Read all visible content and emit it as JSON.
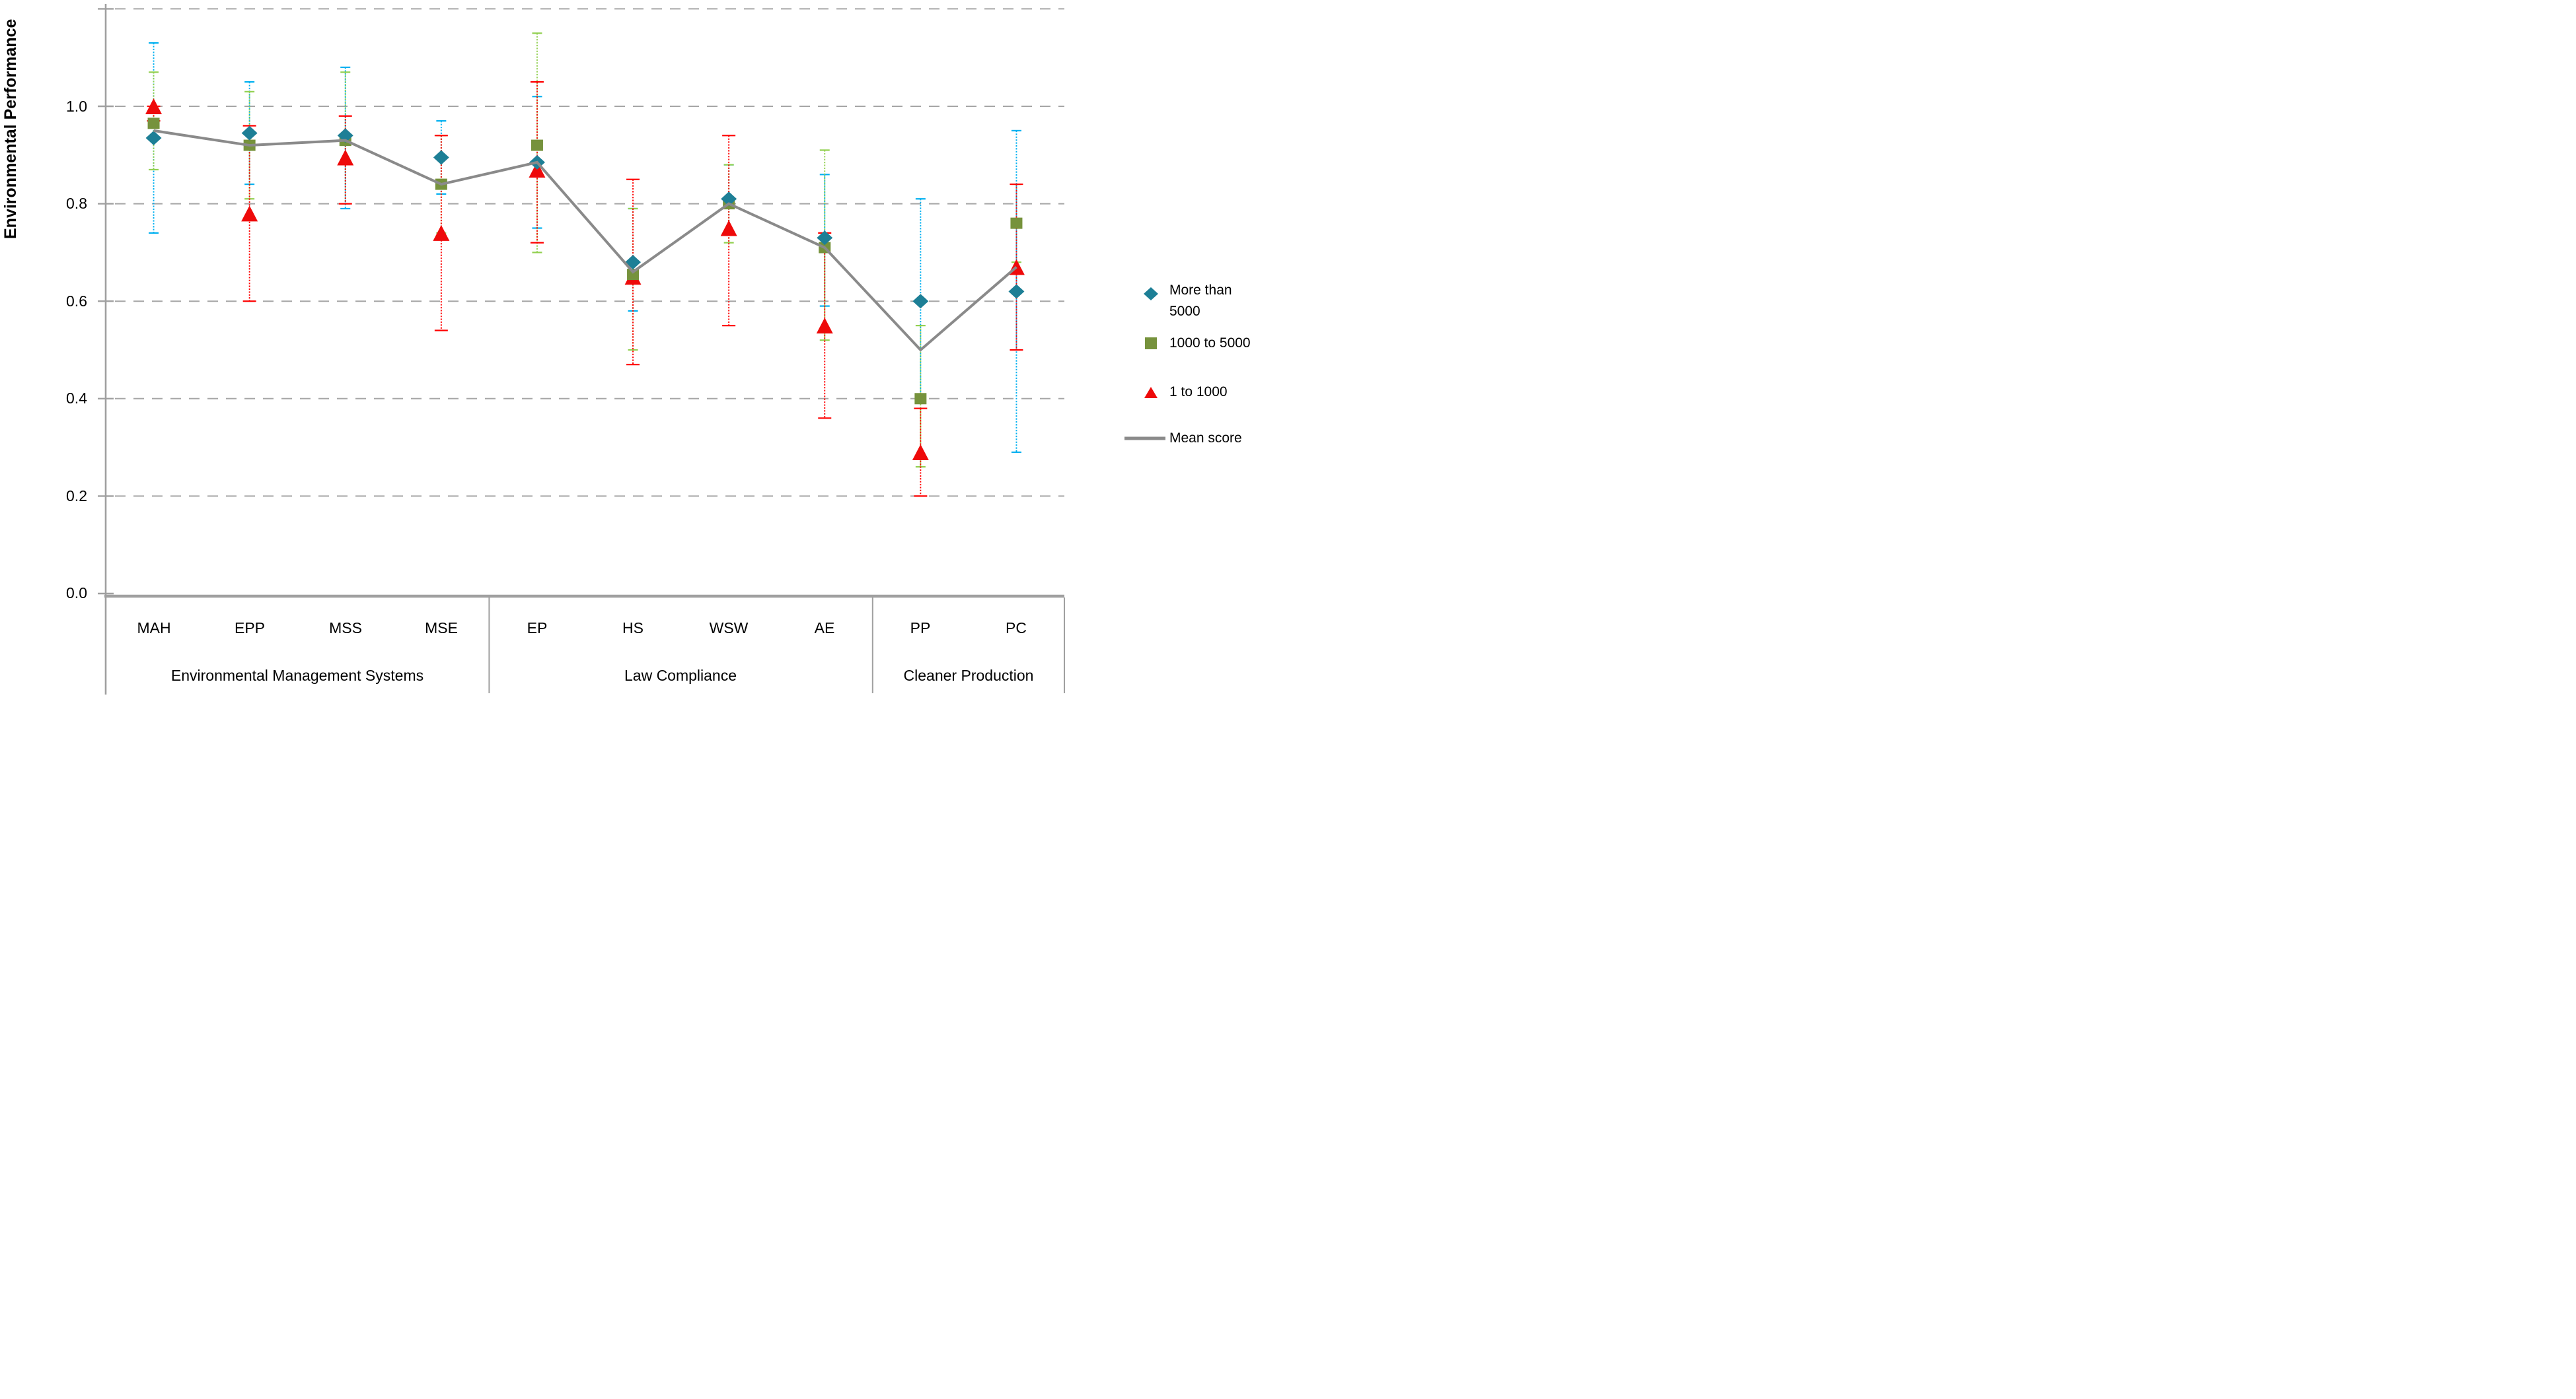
{
  "chart_data": {
    "type": "line",
    "title": "",
    "ylabel": "Environmental Performance",
    "ylim": [
      0,
      1.2
    ],
    "yticks": [
      0.0,
      0.2,
      0.4,
      0.6,
      0.8,
      1.0
    ],
    "ytick_labels_top_to_bottom": [
      "1.0",
      "0.8",
      "0.6",
      "0.4",
      "0.2",
      "0.0"
    ],
    "grid": "dashed horizontal lines every 0.2 up to 1.2",
    "legend_position": "right",
    "categories": [
      "MAH",
      "EPP",
      "MSS",
      "MSE",
      "EP",
      "HS",
      "WSW",
      "AE",
      "PP",
      "PC"
    ],
    "groups": [
      {
        "label": "Environmental Management Systems",
        "categories": [
          "MAH",
          "EPP",
          "MSS",
          "MSE"
        ]
      },
      {
        "label": "Law Compliance",
        "categories": [
          "EP",
          "HS",
          "WSW",
          "AE"
        ]
      },
      {
        "label": "Cleaner Production",
        "categories": [
          "PP",
          "PC"
        ]
      }
    ],
    "series": [
      {
        "name": "More than 5000",
        "marker": "diamond",
        "color": "#1D7F96",
        "error_color": "#00B0F0",
        "values": [
          0.935,
          0.945,
          0.94,
          0.895,
          0.885,
          0.68,
          0.81,
          0.73,
          0.6,
          0.62
        ],
        "err_lo": [
          0.74,
          0.84,
          0.79,
          0.82,
          0.75,
          0.58,
          0.74,
          0.59,
          0.4,
          0.29
        ],
        "err_hi": [
          1.13,
          1.05,
          1.08,
          0.97,
          1.02,
          0.79,
          0.88,
          0.86,
          0.81,
          0.95
        ]
      },
      {
        "name": "1000 to 5000",
        "marker": "square",
        "color": "#76923C",
        "error_color": "#92D050",
        "values": [
          0.965,
          0.92,
          0.93,
          0.84,
          0.92,
          0.655,
          0.8,
          0.71,
          0.4,
          0.76
        ],
        "err_lo": [
          0.87,
          0.81,
          0.8,
          0.74,
          0.7,
          0.5,
          0.72,
          0.52,
          0.26,
          0.68
        ],
        "err_hi": [
          1.07,
          1.03,
          1.07,
          0.94,
          1.15,
          0.79,
          0.88,
          0.91,
          0.55,
          0.84
        ]
      },
      {
        "name": "1 to 1000",
        "marker": "triangle",
        "color": "#EE0A0A",
        "error_color": "#FF0000",
        "values": [
          1.0,
          0.78,
          0.895,
          0.74,
          0.87,
          0.65,
          0.75,
          0.55,
          0.29,
          0.67
        ],
        "err_lo": [
          0.97,
          0.6,
          0.8,
          0.54,
          0.72,
          0.47,
          0.55,
          0.36,
          0.2,
          0.5
        ],
        "err_hi": [
          1.0,
          0.96,
          0.98,
          0.94,
          1.05,
          0.85,
          0.94,
          0.74,
          0.38,
          0.84
        ]
      },
      {
        "name": "Mean score",
        "marker": "line",
        "color": "#8A8A8A",
        "values": [
          0.95,
          0.92,
          0.93,
          0.84,
          0.885,
          0.66,
          0.8,
          0.71,
          0.5,
          0.67
        ]
      }
    ],
    "colors": {
      "gridline": "#A6A6A6",
      "axis": "#A0A0A0",
      "text": "#000000"
    }
  }
}
